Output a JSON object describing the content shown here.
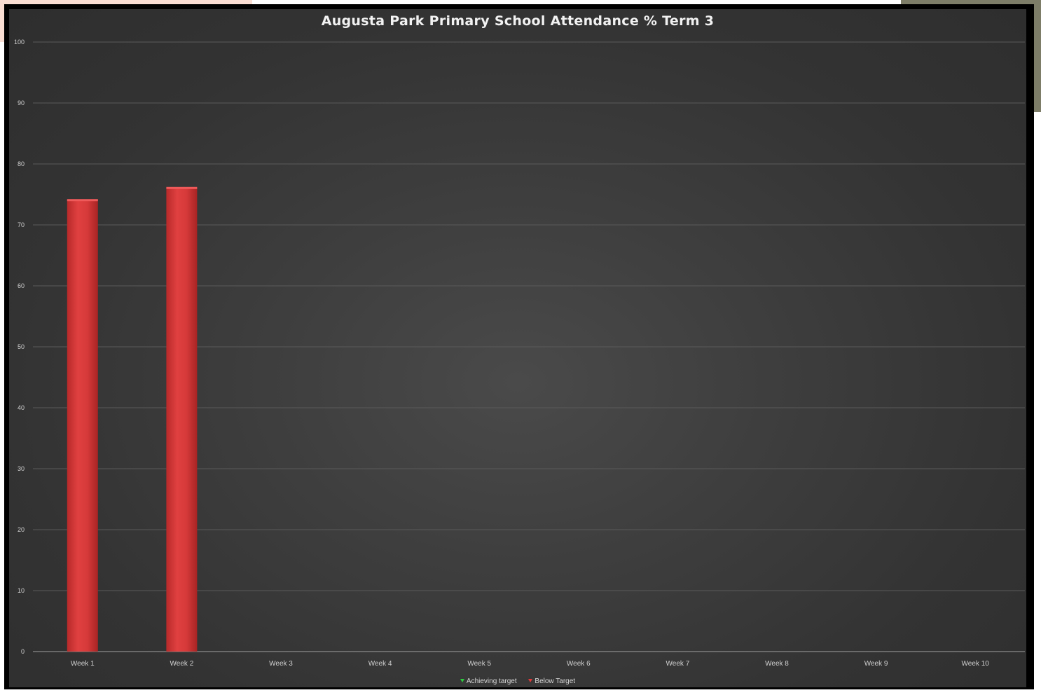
{
  "chart_data": {
    "type": "bar",
    "title": "Augusta Park Primary School Attendance % Term 3",
    "categories": [
      "Week 1",
      "Week 2",
      "Week 3",
      "Week 4",
      "Week 5",
      "Week 6",
      "Week 7",
      "Week 8",
      "Week 9",
      "Week 10"
    ],
    "series": [
      {
        "name": "Achieving target",
        "values": [
          null,
          null,
          null,
          null,
          null,
          null,
          null,
          null,
          null,
          null
        ],
        "color": "#2ecc40"
      },
      {
        "name": "Below Target",
        "values": [
          74,
          76,
          null,
          null,
          null,
          null,
          null,
          null,
          null,
          null
        ],
        "color": "#d9363a"
      }
    ],
    "ylim": [
      0,
      100
    ],
    "yticks": [
      "0",
      "10",
      "20",
      "30",
      "40",
      "50",
      "60",
      "70",
      "80",
      "90",
      "100"
    ],
    "grid": true,
    "legend_position": "bottom"
  },
  "colors": {
    "background": "#3a3a3a",
    "frame": "#000000",
    "text": "#f2f2f2",
    "gridline": "#5a5a5a"
  }
}
